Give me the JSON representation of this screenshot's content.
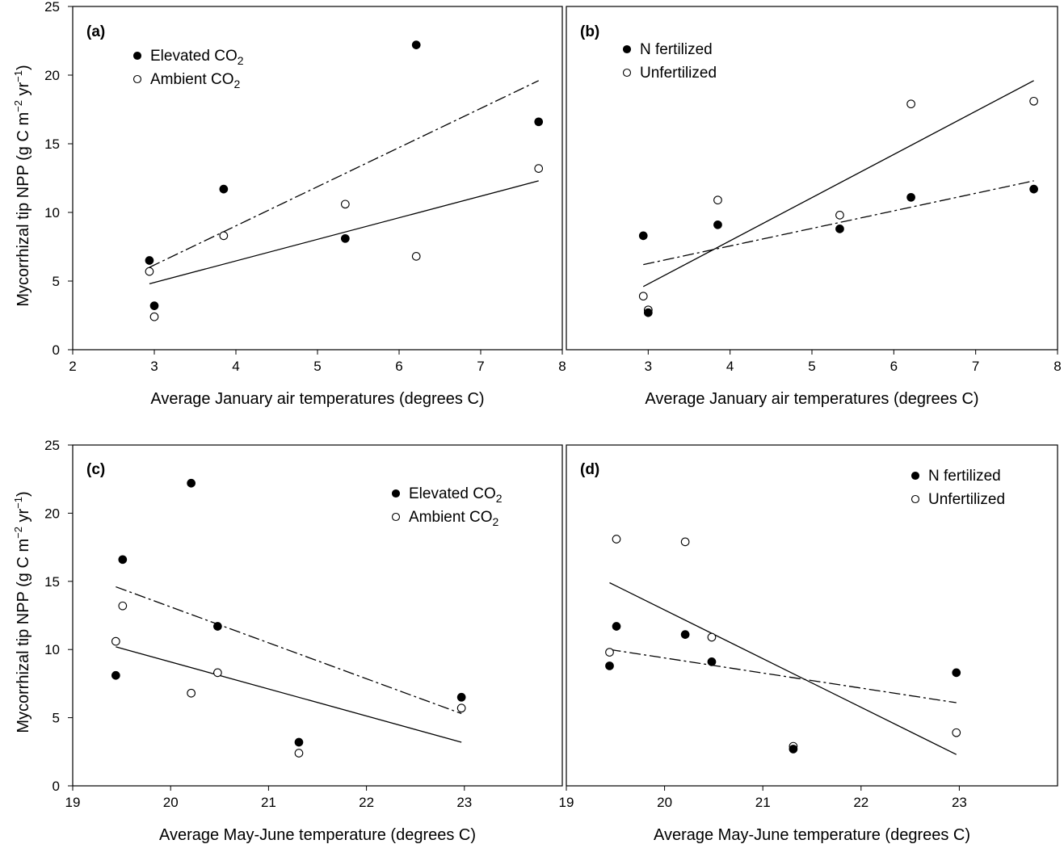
{
  "figure": {
    "ylabel_main": "Mycorrhizal tip NPP (g C m",
    "ylabel_exp1": "−2",
    "ylabel_mid": " yr",
    "ylabel_exp2": "−1",
    "ylabel_end": ")"
  },
  "chart_data": [
    {
      "panel": "(a)",
      "type": "scatter",
      "xlabel": "Average January air temperatures (degrees C)",
      "xlim": [
        2,
        8
      ],
      "ylim": [
        0,
        25
      ],
      "xticks": [
        2,
        3,
        4,
        5,
        6,
        7,
        8
      ],
      "yticks": [
        0,
        5,
        10,
        15,
        20,
        25
      ],
      "legend_position": "top-left",
      "series": [
        {
          "name": "Elevated CO",
          "name_sub": "2",
          "marker": "filled",
          "line": "dash-dot",
          "x": [
            2.94,
            3.0,
            3.85,
            5.34,
            6.21,
            7.71
          ],
          "y": [
            6.5,
            3.2,
            11.7,
            8.1,
            22.2,
            16.6
          ],
          "fit": [
            [
              2.94,
              6.0
            ],
            [
              7.71,
              19.6
            ]
          ]
        },
        {
          "name": "Ambient CO",
          "name_sub": "2",
          "marker": "open",
          "line": "solid",
          "x": [
            2.94,
            3.0,
            3.85,
            5.34,
            6.21,
            7.71
          ],
          "y": [
            5.7,
            2.4,
            8.3,
            10.6,
            6.8,
            13.2
          ],
          "fit": [
            [
              2.94,
              4.8
            ],
            [
              7.71,
              12.3
            ]
          ]
        }
      ]
    },
    {
      "panel": "(b)",
      "type": "scatter",
      "xlabel": "Average January air temperatures (degrees C)",
      "xlim": [
        2,
        8
      ],
      "ylim": [
        0,
        25
      ],
      "xticks": [
        3,
        4,
        5,
        6,
        7,
        8
      ],
      "yticks": [],
      "legend_position": "top-left",
      "series": [
        {
          "name": "N fertilized",
          "name_sub": "",
          "marker": "filled",
          "line": "dash-dot",
          "x": [
            2.94,
            3.0,
            3.85,
            5.34,
            6.21,
            7.71
          ],
          "y": [
            8.3,
            2.7,
            9.1,
            8.8,
            11.1,
            11.7
          ],
          "fit": [
            [
              2.94,
              6.2
            ],
            [
              7.71,
              12.3
            ]
          ]
        },
        {
          "name": "Unfertilized",
          "name_sub": "",
          "marker": "open",
          "line": "solid",
          "x": [
            2.94,
            3.0,
            3.85,
            5.34,
            6.21,
            7.71
          ],
          "y": [
            3.9,
            2.9,
            10.9,
            9.8,
            17.9,
            18.1
          ],
          "fit": [
            [
              2.94,
              4.6
            ],
            [
              7.71,
              19.6
            ]
          ]
        }
      ]
    },
    {
      "panel": "(c)",
      "type": "scatter",
      "xlabel": "Average May-June temperature (degrees C)",
      "xlim": [
        19,
        24
      ],
      "ylim": [
        0,
        25
      ],
      "xticks": [
        19,
        20,
        21,
        22,
        23
      ],
      "yticks": [
        0,
        5,
        10,
        15,
        20,
        25
      ],
      "legend_position": "top-right",
      "series": [
        {
          "name": "Elevated CO",
          "name_sub": "2",
          "marker": "filled",
          "line": "dash-dot",
          "x": [
            19.44,
            19.51,
            20.21,
            20.48,
            21.31,
            22.97
          ],
          "y": [
            8.1,
            16.6,
            22.2,
            11.7,
            3.2,
            6.5
          ],
          "fit": [
            [
              19.44,
              14.6
            ],
            [
              22.97,
              5.3
            ]
          ]
        },
        {
          "name": "Ambient CO",
          "name_sub": "2",
          "marker": "open",
          "line": "solid",
          "x": [
            19.44,
            19.51,
            20.21,
            20.48,
            21.31,
            22.97
          ],
          "y": [
            10.6,
            13.2,
            6.8,
            8.3,
            2.4,
            5.7
          ],
          "fit": [
            [
              19.44,
              10.2
            ],
            [
              22.97,
              3.2
            ]
          ]
        }
      ]
    },
    {
      "panel": "(d)",
      "type": "scatter",
      "xlabel": "Average May-June temperature (degrees C)",
      "xlim": [
        19,
        24
      ],
      "ylim": [
        0,
        25
      ],
      "xticks": [
        19,
        20,
        21,
        22,
        23
      ],
      "yticks": [],
      "legend_position": "top-right",
      "series": [
        {
          "name": "N fertilized",
          "name_sub": "",
          "marker": "filled",
          "line": "dash-dot",
          "x": [
            19.44,
            19.51,
            20.21,
            20.48,
            21.31,
            22.97
          ],
          "y": [
            8.8,
            11.7,
            11.1,
            9.1,
            2.7,
            8.3
          ],
          "fit": [
            [
              19.44,
              10.0
            ],
            [
              22.97,
              6.1
            ]
          ]
        },
        {
          "name": "Unfertilized",
          "name_sub": "",
          "marker": "open",
          "line": "solid",
          "x": [
            19.44,
            19.51,
            20.21,
            20.48,
            21.31,
            22.97
          ],
          "y": [
            9.8,
            18.1,
            17.9,
            10.9,
            2.9,
            3.9
          ],
          "fit": [
            [
              19.44,
              14.9
            ],
            [
              22.97,
              2.3
            ]
          ]
        }
      ]
    }
  ]
}
